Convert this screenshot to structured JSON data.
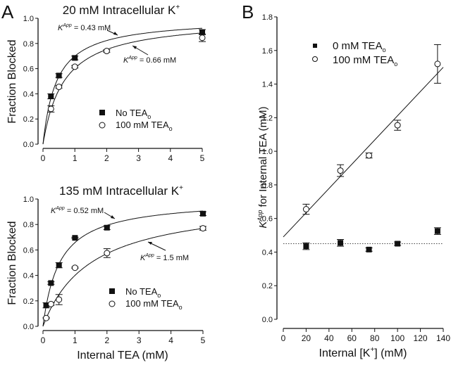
{
  "chart_data": [
    {
      "panel": "A",
      "type": "scatter",
      "title": "20 mM Intracellular K+",
      "xlabel": "",
      "ylabel": "Fraction Blocked",
      "xlim": [
        0,
        5
      ],
      "ylim": [
        0,
        1.0
      ],
      "xticks": [
        "0",
        "1",
        "2",
        "3",
        "4",
        "5"
      ],
      "yticks": [
        "0.0",
        "0.2",
        "0.4",
        "0.6",
        "0.8",
        "1.0"
      ],
      "legend": {
        "position": "bottom-right",
        "entries": [
          "No TEAo",
          "100 mM TEAo"
        ]
      },
      "series": [
        {
          "name": "No TEAo",
          "marker": "filled-square",
          "x": [
            0.25,
            0.5,
            1,
            5
          ],
          "y": [
            0.38,
            0.545,
            0.685,
            0.89
          ],
          "err": [
            0.02,
            0.015,
            0.015,
            0.02
          ],
          "fit_kapp": 0.43
        },
        {
          "name": "100 mM TEAo",
          "marker": "open-circle",
          "x": [
            0.25,
            0.5,
            1,
            2,
            5
          ],
          "y": [
            0.28,
            0.455,
            0.615,
            0.74,
            0.845
          ],
          "err": [
            0.025,
            0.01,
            0.01,
            0.01,
            0.03
          ],
          "fit_kapp": 0.66
        }
      ],
      "annotations": [
        "K^App = 0.43 mM",
        "K^App = 0.66 mM"
      ]
    },
    {
      "panel": "A-bottom",
      "type": "scatter",
      "title": "135 mM Intracellular K+",
      "xlabel": "Internal TEA (mM)",
      "ylabel": "Fraction Blocked",
      "xlim": [
        0,
        5
      ],
      "ylim": [
        0,
        1.0
      ],
      "xticks": [
        "0",
        "1",
        "2",
        "3",
        "4",
        "5"
      ],
      "yticks": [
        "0.0",
        "0.2",
        "0.4",
        "0.6",
        "0.8",
        "1.0"
      ],
      "legend": {
        "position": "bottom-right",
        "entries": [
          "No TEAo",
          "100 mM TEAo"
        ]
      },
      "series": [
        {
          "name": "No TEAo",
          "marker": "filled-square",
          "x": [
            0.1,
            0.25,
            0.5,
            1,
            2,
            5
          ],
          "y": [
            0.165,
            0.34,
            0.48,
            0.695,
            0.775,
            0.885
          ],
          "err": [
            0.02,
            0.01,
            0.02,
            0.005,
            0.015,
            0.015
          ],
          "fit_kapp": 0.52
        },
        {
          "name": "100 mM TEAo",
          "marker": "open-circle",
          "x": [
            0.1,
            0.25,
            0.5,
            1,
            2,
            5
          ],
          "y": [
            0.065,
            0.175,
            0.21,
            0.46,
            0.575,
            0.77
          ],
          "err": [
            0.005,
            0.01,
            0.04,
            0.005,
            0.035,
            0.015
          ],
          "fit_kapp": 1.5
        }
      ],
      "annotations": [
        "K^App = 0.52 mM",
        "K^App = 1.5 mM"
      ]
    },
    {
      "panel": "B",
      "type": "scatter",
      "title": "",
      "xlabel": "Internal [K+] (mM)",
      "ylabel": "K^App for Internal TEA (mM)",
      "xlim": [
        0,
        140
      ],
      "ylim": [
        0,
        1.8
      ],
      "xticks": [
        "0",
        "20",
        "40",
        "60",
        "80",
        "100",
        "120",
        "140"
      ],
      "yticks": [
        "0.0",
        "0.2",
        "0.4",
        "0.6",
        "0.8",
        "1.0",
        "1.2",
        "1.4",
        "1.6",
        "1.8"
      ],
      "legend": {
        "position": "top-left",
        "entries": [
          "0 mM TEAo",
          "100 mM TEAo"
        ]
      },
      "series": [
        {
          "name": "0 mM TEAo",
          "marker": "filled-square",
          "x": [
            20,
            50,
            75,
            100,
            135
          ],
          "y": [
            0.435,
            0.455,
            0.415,
            0.45,
            0.525
          ],
          "err": [
            0.02,
            0.02,
            0.01,
            0.01,
            0.02
          ]
        },
        {
          "name": "100 mM TEAo",
          "marker": "open-circle",
          "x": [
            20,
            50,
            75,
            100,
            135
          ],
          "y": [
            0.655,
            0.885,
            0.975,
            1.155,
            1.52
          ],
          "err": [
            0.03,
            0.035,
            0.015,
            0.03,
            0.115
          ]
        }
      ],
      "fit_line": {
        "x": [
          0,
          140
        ],
        "y": [
          0.49,
          1.5
        ]
      },
      "reference_line": {
        "y": 0.45,
        "style": "dotted"
      }
    }
  ],
  "labels": {
    "panel_a": "A",
    "panel_b": "B",
    "top_title_main": "20 mM Intracellular K",
    "top_title_sup": "+",
    "bottom_title_main": "135 mM Intracellular K",
    "bottom_title_sup": "+",
    "ylabel_a": "Fraction Blocked",
    "xlabel_a": "Internal TEA (mM)",
    "kapp_k": "K",
    "kapp_sup": "App",
    "top_ann1": " = 0.43 mM",
    "top_ann2": " = 0.66 mM",
    "bot_ann1": " = 0.52 mM",
    "bot_ann2": " = 1.5 mM",
    "legend_a1": "No TEA",
    "legend_a2": "100 mM TEA",
    "legend_sub": "o",
    "legend_b1": "0 mM TEA",
    "legend_b2": "100 mM TEA",
    "ylabel_b_rest": " for Internal TEA (mM)",
    "xlabel_b_main": "Internal [K",
    "xlabel_b_sup": "+",
    "xlabel_b_end": "] (mM)"
  }
}
